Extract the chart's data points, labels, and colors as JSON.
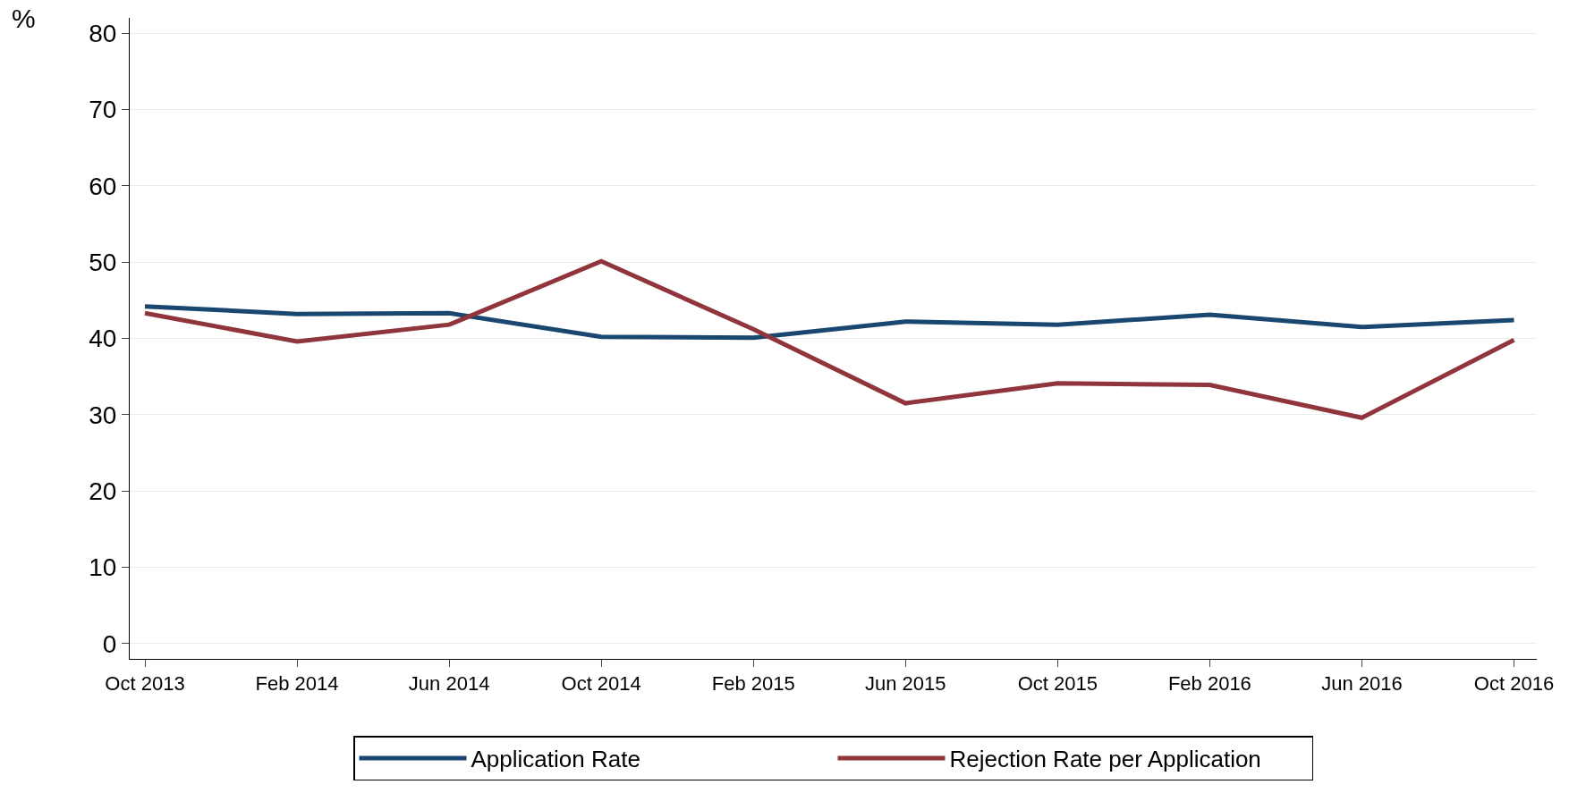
{
  "chart_data": {
    "type": "line",
    "ylabel": "%",
    "categories": [
      "Oct 2013",
      "Feb 2014",
      "Jun 2014",
      "Oct 2014",
      "Feb 2015",
      "Jun 2015",
      "Oct 2015",
      "Feb 2016",
      "Jun 2016",
      "Oct 2016"
    ],
    "series": [
      {
        "name": "Application Rate",
        "color": "#1a476f",
        "values": [
          44.2,
          43.2,
          43.3,
          40.2,
          40.1,
          42.2,
          41.8,
          43.1,
          41.5,
          42.4
        ]
      },
      {
        "name": "Rejection Rate per Application",
        "color": "#90353b",
        "values": [
          43.3,
          39.6,
          41.8,
          50.1,
          41.2,
          31.5,
          34.1,
          33.9,
          29.6,
          39.8
        ]
      }
    ],
    "ylim": [
      -2,
      82
    ],
    "yticks": [
      0,
      10,
      20,
      30,
      40,
      50,
      60,
      70,
      80
    ],
    "grid": "y",
    "legend": "bottom",
    "marker": "none",
    "line_style": "solid"
  }
}
